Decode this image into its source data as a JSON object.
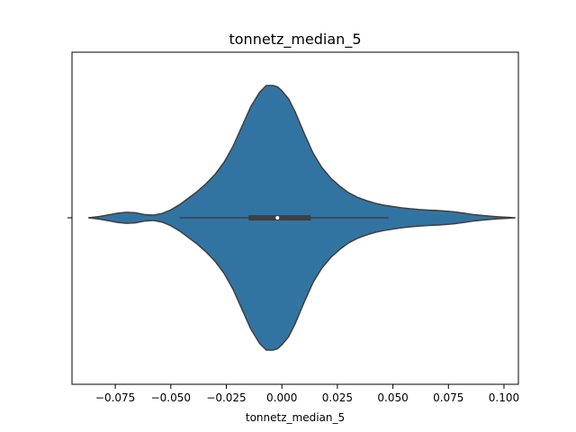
{
  "chart_data": {
    "type": "violin",
    "title": "tonnetz_median_5",
    "xlabel": "tonnetz_median_5",
    "ylabel": "",
    "xlim": [
      -0.0945,
      0.1065
    ],
    "xticks": [
      -0.075,
      -0.05,
      -0.025,
      0.0,
      0.025,
      0.05,
      0.075,
      0.1
    ],
    "xtick_labels": [
      "−0.075",
      "−0.050",
      "−0.025",
      "0.000",
      "0.025",
      "0.050",
      "0.075",
      "0.100"
    ],
    "grid": false,
    "fill_color": "#3274a1",
    "edge_color": "#3f3f3f",
    "box": {
      "whisker_low": -0.046,
      "q1": -0.015,
      "median": -0.002,
      "q3": 0.013,
      "whisker_high": 0.048
    },
    "density": {
      "x": [
        -0.087,
        -0.082,
        -0.078,
        -0.074,
        -0.07,
        -0.066,
        -0.062,
        -0.058,
        -0.054,
        -0.05,
        -0.046,
        -0.042,
        -0.038,
        -0.034,
        -0.03,
        -0.026,
        -0.022,
        -0.018,
        -0.014,
        -0.01,
        -0.007,
        -0.004,
        -0.002,
        0.0,
        0.003,
        0.006,
        0.01,
        0.014,
        0.018,
        0.022,
        0.026,
        0.03,
        0.034,
        0.038,
        0.042,
        0.046,
        0.05,
        0.054,
        0.058,
        0.062,
        0.066,
        0.07,
        0.074,
        0.078,
        0.082,
        0.086,
        0.09,
        0.094,
        0.098,
        0.102,
        0.105
      ],
      "half_width": [
        0.0,
        0.01,
        0.022,
        0.035,
        0.042,
        0.038,
        0.025,
        0.02,
        0.032,
        0.06,
        0.1,
        0.15,
        0.2,
        0.26,
        0.33,
        0.42,
        0.54,
        0.69,
        0.84,
        0.95,
        1.0,
        1.0,
        0.99,
        0.96,
        0.9,
        0.8,
        0.64,
        0.49,
        0.38,
        0.3,
        0.24,
        0.19,
        0.155,
        0.13,
        0.11,
        0.095,
        0.085,
        0.075,
        0.068,
        0.062,
        0.058,
        0.055,
        0.05,
        0.044,
        0.035,
        0.025,
        0.018,
        0.012,
        0.007,
        0.003,
        0.0
      ]
    }
  }
}
